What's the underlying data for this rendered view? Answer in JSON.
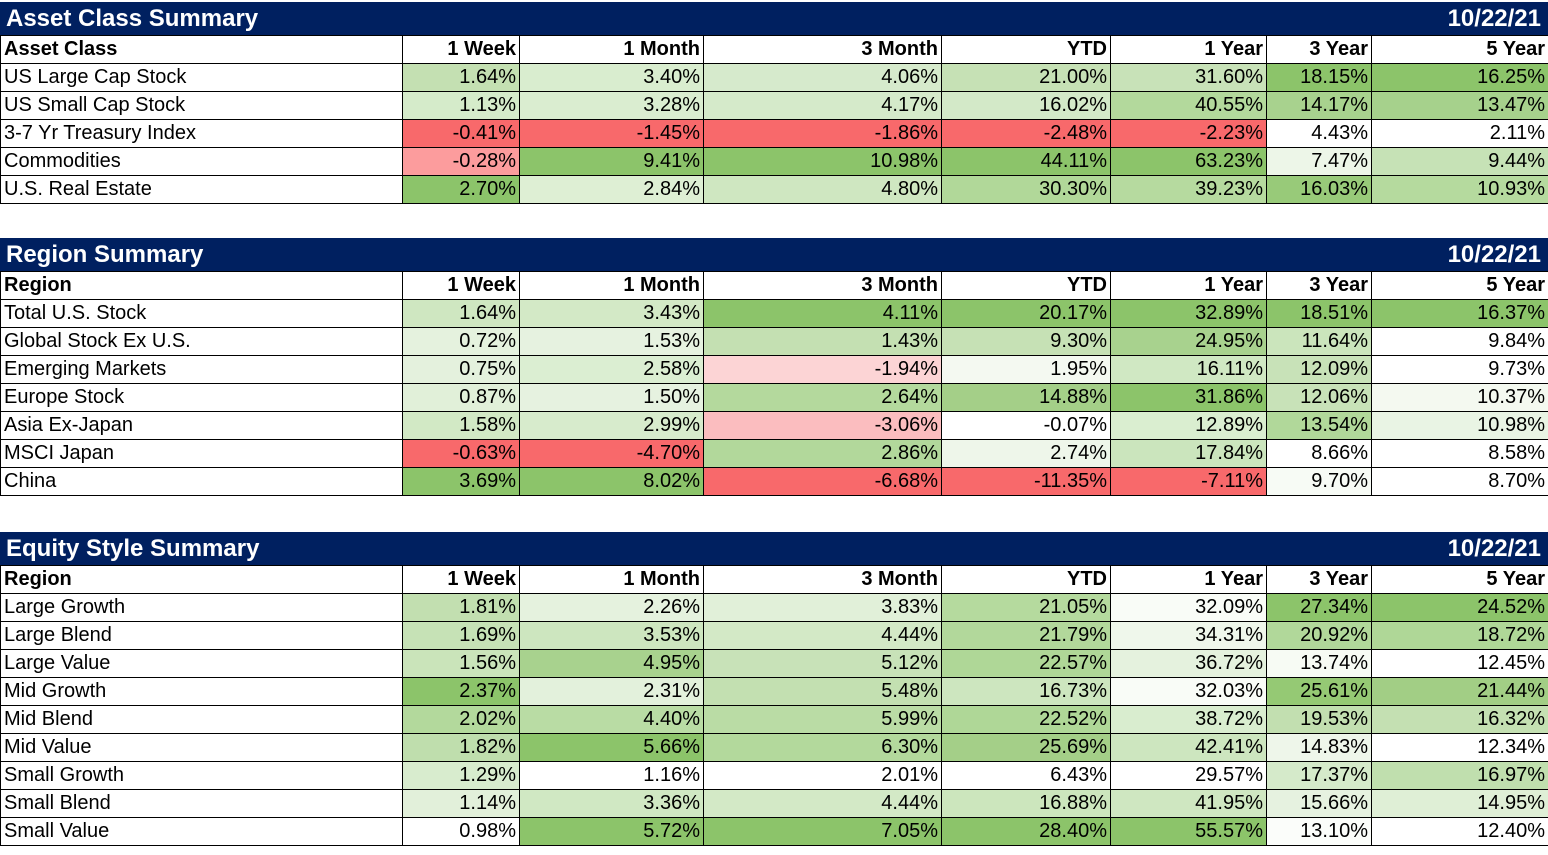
{
  "columns": [
    "1 Week",
    "1 Month",
    "3 Month",
    "YTD",
    "1 Year",
    "3 Year",
    "5 Year"
  ],
  "sections": [
    {
      "title": "Asset Class Summary",
      "date": "10/22/21",
      "first_header": "Asset Class",
      "rows": [
        {
          "label": "US Large Cap Stock",
          "values": [
            "1.64%",
            "3.40%",
            "4.06%",
            "21.00%",
            "31.60%",
            "18.15%",
            "16.25%"
          ],
          "colors": [
            "#c4e0b2",
            "#d9edcf",
            "#d6eacc",
            "#c6e1b5",
            "#c8e2b8",
            "#8cc46a",
            "#8cc46a"
          ]
        },
        {
          "label": "US Small Cap Stock",
          "values": [
            "1.13%",
            "3.28%",
            "4.17%",
            "16.02%",
            "40.55%",
            "14.17%",
            "13.47%"
          ],
          "colors": [
            "#d5ebca",
            "#daedd0",
            "#d5eaca",
            "#d3e9c8",
            "#b3d99c",
            "#a8d28e",
            "#a6d18c"
          ]
        },
        {
          "label": "3-7 Yr Treasury Index",
          "values": [
            "-0.41%",
            "-1.45%",
            "-1.86%",
            "-2.48%",
            "-2.23%",
            "4.43%",
            "2.11%"
          ],
          "colors": [
            "#f8696b",
            "#f8696b",
            "#f8696b",
            "#f8696b",
            "#f8696b",
            "#ffffff",
            "#ffffff"
          ]
        },
        {
          "label": "Commodities",
          "values": [
            "-0.28%",
            "9.41%",
            "10.98%",
            "44.11%",
            "63.23%",
            "7.47%",
            "9.44%"
          ],
          "colors": [
            "#fc9c9d",
            "#8cc46a",
            "#8cc46a",
            "#8cc46a",
            "#8cc46a",
            "#edf6e8",
            "#c6e2b6"
          ]
        },
        {
          "label": "U.S. Real Estate",
          "values": [
            "2.70%",
            "2.84%",
            "4.80%",
            "30.30%",
            "39.23%",
            "16.03%",
            "10.93%"
          ],
          "colors": [
            "#8cc46a",
            "#deefd4",
            "#cfe7c1",
            "#b1d899",
            "#b6da9f",
            "#98ca79",
            "#b5da9e"
          ]
        }
      ]
    },
    {
      "title": "Region Summary",
      "date": "10/22/21",
      "first_header": "Region",
      "rows": [
        {
          "label": "Total U.S. Stock",
          "values": [
            "1.64%",
            "3.43%",
            "4.11%",
            "20.17%",
            "32.89%",
            "18.51%",
            "16.37%"
          ],
          "colors": [
            "#cfe7c1",
            "#d3e9c6",
            "#8cc46a",
            "#8cc46a",
            "#8cc46a",
            "#8cc46a",
            "#8cc46a"
          ]
        },
        {
          "label": "Global Stock Ex U.S.",
          "values": [
            "0.72%",
            "1.53%",
            "1.43%",
            "9.30%",
            "24.95%",
            "11.64%",
            "9.84%"
          ],
          "colors": [
            "#e5f2de",
            "#e6f2e0",
            "#c4e0b2",
            "#c6e1b5",
            "#a8d28e",
            "#cbe5bc",
            "#ffffff"
          ]
        },
        {
          "label": "Emerging Markets",
          "values": [
            "0.75%",
            "2.58%",
            "-1.94%",
            "1.95%",
            "16.11%",
            "12.09%",
            "9.73%"
          ],
          "colors": [
            "#e4f1dd",
            "#dbeed2",
            "#fcd4d5",
            "#f4f9f1",
            "#d0e8c3",
            "#c8e2b8",
            "#ffffff"
          ]
        },
        {
          "label": "Europe Stock",
          "values": [
            "0.87%",
            "1.50%",
            "2.64%",
            "14.88%",
            "31.86%",
            "12.06%",
            "10.37%"
          ],
          "colors": [
            "#e1f0d9",
            "#e6f2e0",
            "#b4d99d",
            "#a4cf88",
            "#8cc46a",
            "#c8e2b8",
            "#f4f9f0"
          ]
        },
        {
          "label": "Asia Ex-Japan",
          "values": [
            "1.58%",
            "2.99%",
            "-3.06%",
            "-0.07%",
            "12.89%",
            "13.54%",
            "10.98%"
          ],
          "colors": [
            "#d2e9c5",
            "#d7ebcc",
            "#fbbdbf",
            "#ffffff",
            "#daeed0",
            "#b1d89a",
            "#e9f4e4"
          ]
        },
        {
          "label": "MSCI Japan",
          "values": [
            "-0.63%",
            "-4.70%",
            "2.86%",
            "2.74%",
            "17.84%",
            "8.66%",
            "8.58%"
          ],
          "colors": [
            "#f8696b",
            "#f8696b",
            "#b2d89b",
            "#eef6ea",
            "#cbe5bd",
            "#ffffff",
            "#ffffff"
          ]
        },
        {
          "label": "China",
          "values": [
            "3.69%",
            "8.02%",
            "-6.68%",
            "-11.35%",
            "-7.11%",
            "9.70%",
            "8.70%"
          ],
          "colors": [
            "#8cc46a",
            "#8cc46a",
            "#f8696b",
            "#f8696b",
            "#f8696b",
            "#f7fbf5",
            "#ffffff"
          ]
        }
      ]
    },
    {
      "title": "Equity Style Summary",
      "date": "10/22/21",
      "first_header": "Region",
      "rows": [
        {
          "label": "Large Growth",
          "values": [
            "1.81%",
            "2.26%",
            "3.83%",
            "21.05%",
            "32.09%",
            "27.34%",
            "24.52%"
          ],
          "colors": [
            "#c2dfb0",
            "#e5f2de",
            "#e1f0d9",
            "#b5da9e",
            "#f9fcf7",
            "#8cc46a",
            "#8cc46a"
          ]
        },
        {
          "label": "Large Blend",
          "values": [
            "1.69%",
            "3.53%",
            "4.44%",
            "21.79%",
            "34.31%",
            "20.92%",
            "18.72%"
          ],
          "colors": [
            "#c6e2b6",
            "#cde6bf",
            "#d3e9c6",
            "#b2d89b",
            "#eff7eb",
            "#b1d89a",
            "#afd797"
          ]
        },
        {
          "label": "Large Value",
          "values": [
            "1.56%",
            "4.95%",
            "5.12%",
            "22.57%",
            "36.72%",
            "13.74%",
            "12.45%"
          ],
          "colors": [
            "#cae4ba",
            "#a8d28e",
            "#c8e2b8",
            "#afd797",
            "#e5f2de",
            "#f7fbf4",
            "#ffffff"
          ]
        },
        {
          "label": "Mid Growth",
          "values": [
            "2.37%",
            "2.31%",
            "5.48%",
            "16.73%",
            "32.03%",
            "25.61%",
            "21.44%"
          ],
          "colors": [
            "#8cc46a",
            "#e3f1dc",
            "#c3e0b1",
            "#cde6bf",
            "#f9fcf7",
            "#95c974",
            "#a2ce85"
          ]
        },
        {
          "label": "Mid Blend",
          "values": [
            "2.02%",
            "4.40%",
            "5.99%",
            "22.52%",
            "38.72%",
            "19.53%",
            "16.32%"
          ],
          "colors": [
            "#b3d99c",
            "#b9dca4",
            "#badca5",
            "#afd797",
            "#d9edcf",
            "#c2dfb0",
            "#c4e0b2"
          ]
        },
        {
          "label": "Mid Value",
          "values": [
            "1.82%",
            "5.66%",
            "6.30%",
            "25.69%",
            "42.41%",
            "14.83%",
            "12.34%"
          ],
          "colors": [
            "#bfdead",
            "#8cc46a",
            "#b3d99c",
            "#a4cf88",
            "#cde6bf",
            "#eef6ea",
            "#ffffff"
          ]
        },
        {
          "label": "Small Growth",
          "values": [
            "1.29%",
            "1.16%",
            "2.01%",
            "6.43%",
            "29.57%",
            "17.37%",
            "16.97%"
          ],
          "colors": [
            "#d8ecce",
            "#ffffff",
            "#ffffff",
            "#ffffff",
            "#ffffff",
            "#d5eaca",
            "#c0dfae"
          ]
        },
        {
          "label": "Small Blend",
          "values": [
            "1.14%",
            "3.36%",
            "4.44%",
            "16.88%",
            "41.95%",
            "15.66%",
            "14.95%"
          ],
          "colors": [
            "#e2f0da",
            "#d0e8c3",
            "#d3e9c6",
            "#cce6bd",
            "#cfe7c1",
            "#e6f2e0",
            "#dfefd6"
          ]
        },
        {
          "label": "Small Value",
          "values": [
            "0.98%",
            "5.72%",
            "7.05%",
            "28.40%",
            "55.57%",
            "13.10%",
            "12.40%"
          ],
          "colors": [
            "#ffffff",
            "#8cc46a",
            "#8cc46a",
            "#8cc46a",
            "#8cc46a",
            "#fbfdfa",
            "#ffffff"
          ]
        }
      ]
    }
  ]
}
